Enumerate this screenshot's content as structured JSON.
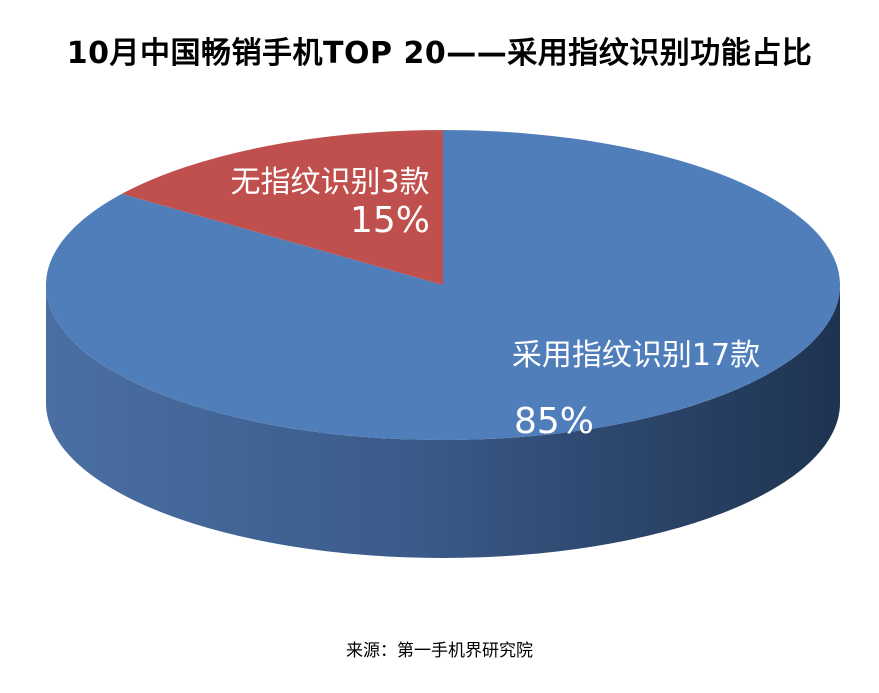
{
  "title": "10月中国畅销手机TOP 20——采用指纹识别功能占比",
  "source": "来源：第一手机界研究院",
  "colors": {
    "with_fingerprint": "#4F7EBB",
    "with_fingerprint_side": "#3A5E8E",
    "without_fingerprint": "#C0504D",
    "label_text": "#FFFFFF"
  },
  "chart_data": {
    "type": "pie",
    "style": "3d",
    "legend": "none",
    "slices": [
      {
        "label": "采用指纹识别17款",
        "count": 17,
        "percent_label": "85%",
        "value": 85
      },
      {
        "label": "无指纹识别3款",
        "count": 3,
        "percent_label": "15%",
        "value": 15
      }
    ]
  }
}
